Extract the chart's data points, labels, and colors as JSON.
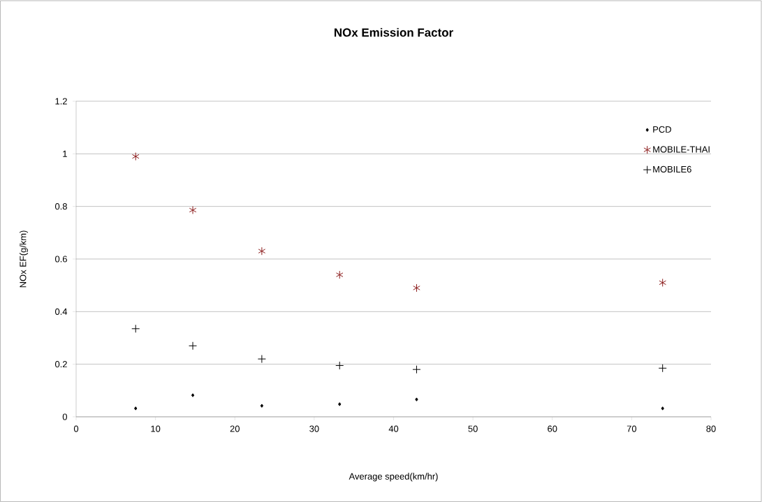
{
  "chart_data": {
    "type": "scatter",
    "title": "NOx Emission Factor",
    "xlabel": "Average speed(km/hr)",
    "ylabel": "NOx EF(g/km)",
    "x": [
      7.5,
      14.7,
      23.4,
      33.2,
      42.9,
      73.9
    ],
    "series": [
      {
        "name": "PCD",
        "color": "#000000",
        "marker": "diamond",
        "values": [
          0.032,
          0.082,
          0.042,
          0.048,
          0.066,
          0.032
        ]
      },
      {
        "name": "MOBILE-THAI",
        "color": "#8b1a1a",
        "values": [
          0.99,
          0.786,
          0.63,
          0.54,
          0.49,
          0.51
        ]
      },
      {
        "name": "MOBILE6",
        "color": "#000000",
        "marker": "cross",
        "values": [
          0.335,
          0.27,
          0.22,
          0.195,
          0.18,
          0.185
        ]
      }
    ],
    "xlim": [
      0,
      80
    ],
    "xticks": [
      0,
      10,
      20,
      30,
      40,
      50,
      60,
      70,
      80
    ],
    "ylim": [
      0,
      1.2
    ],
    "yticks": [
      0,
      0.2,
      0.4,
      0.6,
      0.8,
      1,
      1.2
    ],
    "grid": "y",
    "legend": "top right"
  }
}
